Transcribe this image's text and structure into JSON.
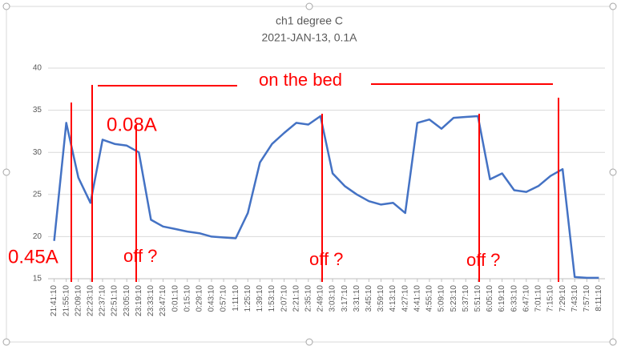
{
  "chart_data": {
    "type": "line",
    "title": "ch1 degree C",
    "subtitle": "2021-JAN-13, 0.1A",
    "categories": [
      "21:41:10",
      "21:55:10",
      "22:09:10",
      "22:23:10",
      "22:37:10",
      "22:51:10",
      "23:05:10",
      "23:19:10",
      "23:33:10",
      "23:47:10",
      "0:01:10",
      "0:15:10",
      "0:29:10",
      "0:43:10",
      "0:57:10",
      "1:11:10",
      "1:25:10",
      "1:39:10",
      "1:53:10",
      "2:07:10",
      "2:21:10",
      "2:35:10",
      "2:49:10",
      "3:03:10",
      "3:17:10",
      "3:31:10",
      "3:45:10",
      "3:59:10",
      "4:13:10",
      "4:27:10",
      "4:41:10",
      "4:55:10",
      "5:09:10",
      "5:23:10",
      "5:37:10",
      "5:51:10",
      "6:05:10",
      "6:19:10",
      "6:33:10",
      "6:47:10",
      "7:01:10",
      "7:15:10",
      "7:29:10",
      "7:43:10",
      "7:57:10",
      "8:11:10"
    ],
    "values": [
      19.5,
      33.5,
      27,
      24,
      31.5,
      31,
      30.8,
      30,
      22,
      21.2,
      20.9,
      20.6,
      20.4,
      20,
      19.9,
      19.8,
      22.8,
      28.8,
      31,
      32.3,
      33.5,
      33.3,
      34.3,
      27.5,
      26,
      25,
      24.2,
      23.8,
      24,
      22.8,
      33.5,
      33.9,
      32.8,
      34.1,
      34.2,
      34.3,
      26.8,
      27.5,
      25.5,
      25.3,
      26,
      27.2,
      28,
      15.2,
      15.1,
      15.1
    ],
    "color": "#4472c4",
    "ylim": [
      15,
      40
    ],
    "yticks": [
      15,
      20,
      25,
      30,
      35,
      40
    ],
    "grid": true,
    "annotations": [
      "on the bed",
      "0.08A",
      "0.45A",
      "off ?",
      "off ?",
      "off ?"
    ]
  }
}
